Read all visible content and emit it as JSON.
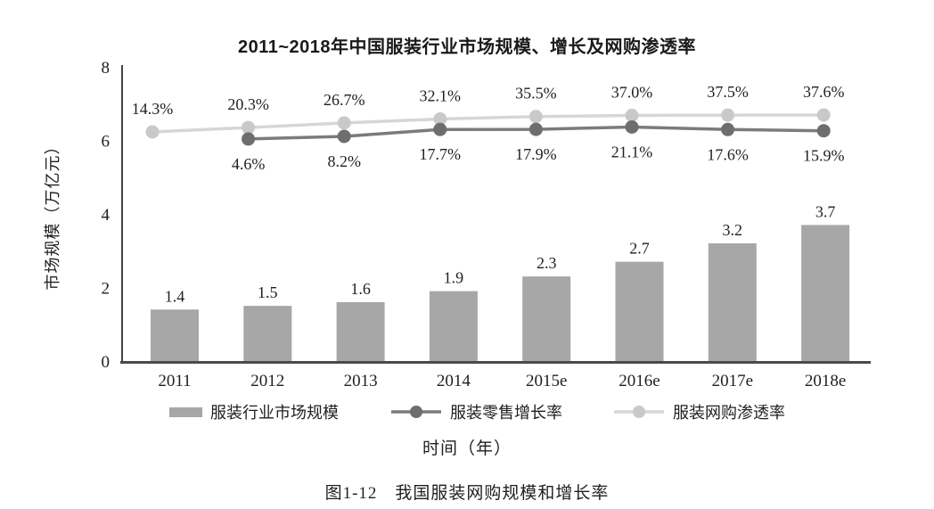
{
  "figure": {
    "title": "2011~2018年中国服装行业市场规模、增长及网购渗透率",
    "y_axis_title": "市场规模（万亿元）",
    "x_axis_title": "时间（年）",
    "caption": "图1-12　我国服装网购规模和增长率"
  },
  "colors": {
    "axis": "#424242",
    "baseline": "#4a4a4a",
    "text": "#1f1f1f"
  },
  "chart_data": {
    "type": "combo",
    "title": "2011~2018年中国服装行业市场规模、增长及网购渗透率",
    "xlabel": "时间（年）",
    "ylabel": "市场规模（万亿元）",
    "ylim": [
      0,
      8
    ],
    "yticks": [
      0,
      2,
      4,
      6,
      8
    ],
    "grid": false,
    "legend_position": "bottom",
    "categories": [
      "2011",
      "2012",
      "2013",
      "2014",
      "2015e",
      "2016e",
      "2017e",
      "2018e"
    ],
    "series": [
      {
        "name": "服装行业市场规模",
        "type": "bar",
        "axis": "left",
        "unit": "万亿元",
        "color": "#a7a7a7",
        "values": [
          1.4,
          1.5,
          1.6,
          1.9,
          2.3,
          2.7,
          3.2,
          3.7
        ],
        "labels": [
          "1.4",
          "1.5",
          "1.6",
          "1.9",
          "2.3",
          "2.7",
          "3.2",
          "3.7"
        ]
      },
      {
        "name": "服装零售增长率",
        "type": "line",
        "axis": "secondary-hidden",
        "unit": "%",
        "color": "#7b7b7b",
        "dot_color": "#6e6e6e",
        "label_position": "below",
        "values": [
          null,
          4.6,
          8.2,
          17.7,
          17.9,
          21.1,
          17.6,
          15.9
        ],
        "labels": [
          "",
          "4.6%",
          "8.2%",
          "17.7%",
          "17.9%",
          "21.1%",
          "17.6%",
          "15.9%"
        ]
      },
      {
        "name": "服装网购渗透率",
        "type": "line",
        "axis": "secondary-hidden",
        "unit": "%",
        "color": "#d6d6d6",
        "dot_color": "#c9c9c9",
        "label_position": "above",
        "values": [
          14.3,
          20.3,
          26.7,
          32.1,
          35.5,
          37.0,
          37.5,
          37.6
        ],
        "labels": [
          "14.3%",
          "20.3%",
          "26.7%",
          "32.1%",
          "35.5%",
          "37.0%",
          "37.5%",
          "37.6%"
        ]
      }
    ]
  }
}
